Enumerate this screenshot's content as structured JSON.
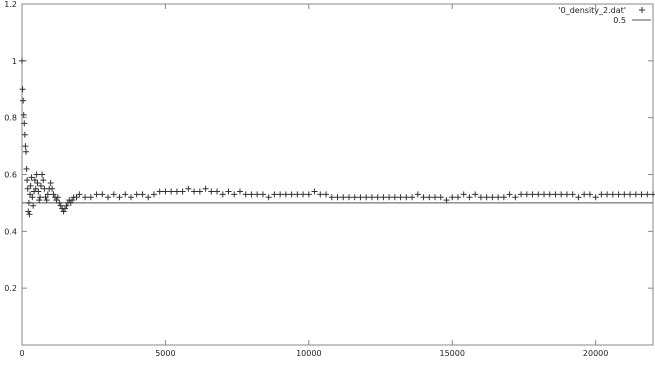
{
  "chart_data": {
    "type": "scatter",
    "xlim": [
      0,
      22000
    ],
    "ylim": [
      0,
      1.2
    ],
    "xticks": [
      0,
      5000,
      10000,
      15000,
      20000
    ],
    "yticks": [
      0.2,
      0.4,
      0.6,
      0.8,
      1,
      1.2
    ],
    "xtick_labels": [
      "0",
      "5000",
      "10000",
      "15000",
      "20000"
    ],
    "ytick_labels": [
      "0.2",
      "0.4",
      "0.6",
      "0.8",
      "1",
      "1.2"
    ],
    "grid": false,
    "legend_position": "top-right",
    "series": [
      {
        "name": "'0_density_2.dat'",
        "marker": "plus",
        "color": "#333333",
        "points": [
          [
            0,
            1.0
          ],
          [
            20,
            0.9
          ],
          [
            40,
            0.86
          ],
          [
            60,
            0.81
          ],
          [
            80,
            0.78
          ],
          [
            100,
            0.74
          ],
          [
            120,
            0.7
          ],
          [
            140,
            0.68
          ],
          [
            160,
            0.62
          ],
          [
            180,
            0.58
          ],
          [
            200,
            0.55
          ],
          [
            220,
            0.47
          ],
          [
            240,
            0.5
          ],
          [
            260,
            0.46
          ],
          [
            280,
            0.53
          ],
          [
            300,
            0.56
          ],
          [
            330,
            0.59
          ],
          [
            360,
            0.52
          ],
          [
            390,
            0.49
          ],
          [
            420,
            0.54
          ],
          [
            450,
            0.58
          ],
          [
            480,
            0.55
          ],
          [
            510,
            0.6
          ],
          [
            540,
            0.57
          ],
          [
            570,
            0.54
          ],
          [
            600,
            0.51
          ],
          [
            630,
            0.52
          ],
          [
            660,
            0.56
          ],
          [
            700,
            0.6
          ],
          [
            740,
            0.58
          ],
          [
            780,
            0.55
          ],
          [
            820,
            0.52
          ],
          [
            860,
            0.51
          ],
          [
            900,
            0.53
          ],
          [
            950,
            0.55
          ],
          [
            1000,
            0.57
          ],
          [
            1050,
            0.55
          ],
          [
            1100,
            0.53
          ],
          [
            1150,
            0.52
          ],
          [
            1200,
            0.51
          ],
          [
            1250,
            0.52
          ],
          [
            1300,
            0.5
          ],
          [
            1350,
            0.49
          ],
          [
            1400,
            0.48
          ],
          [
            1450,
            0.47
          ],
          [
            1500,
            0.48
          ],
          [
            1550,
            0.49
          ],
          [
            1600,
            0.5
          ],
          [
            1650,
            0.51
          ],
          [
            1700,
            0.5
          ],
          [
            1750,
            0.51
          ],
          [
            1800,
            0.52
          ],
          [
            1900,
            0.52
          ],
          [
            2000,
            0.53
          ],
          [
            2200,
            0.52
          ],
          [
            2400,
            0.52
          ],
          [
            2600,
            0.53
          ],
          [
            2800,
            0.53
          ],
          [
            3000,
            0.52
          ],
          [
            3200,
            0.53
          ],
          [
            3400,
            0.52
          ],
          [
            3600,
            0.53
          ],
          [
            3800,
            0.52
          ],
          [
            4000,
            0.53
          ],
          [
            4200,
            0.53
          ],
          [
            4400,
            0.52
          ],
          [
            4600,
            0.53
          ],
          [
            4800,
            0.54
          ],
          [
            5000,
            0.54
          ],
          [
            5200,
            0.54
          ],
          [
            5400,
            0.54
          ],
          [
            5600,
            0.54
          ],
          [
            5800,
            0.55
          ],
          [
            6000,
            0.54
          ],
          [
            6200,
            0.54
          ],
          [
            6400,
            0.55
          ],
          [
            6600,
            0.54
          ],
          [
            6800,
            0.54
          ],
          [
            7000,
            0.53
          ],
          [
            7200,
            0.54
          ],
          [
            7400,
            0.53
          ],
          [
            7600,
            0.54
          ],
          [
            7800,
            0.53
          ],
          [
            8000,
            0.53
          ],
          [
            8200,
            0.53
          ],
          [
            8400,
            0.53
          ],
          [
            8600,
            0.52
          ],
          [
            8800,
            0.53
          ],
          [
            9000,
            0.53
          ],
          [
            9200,
            0.53
          ],
          [
            9400,
            0.53
          ],
          [
            9600,
            0.53
          ],
          [
            9800,
            0.53
          ],
          [
            10000,
            0.53
          ],
          [
            10200,
            0.54
          ],
          [
            10400,
            0.53
          ],
          [
            10600,
            0.53
          ],
          [
            10800,
            0.52
          ],
          [
            11000,
            0.52
          ],
          [
            11200,
            0.52
          ],
          [
            11400,
            0.52
          ],
          [
            11600,
            0.52
          ],
          [
            11800,
            0.52
          ],
          [
            12000,
            0.52
          ],
          [
            12200,
            0.52
          ],
          [
            12400,
            0.52
          ],
          [
            12600,
            0.52
          ],
          [
            12800,
            0.52
          ],
          [
            13000,
            0.52
          ],
          [
            13200,
            0.52
          ],
          [
            13400,
            0.52
          ],
          [
            13600,
            0.52
          ],
          [
            13800,
            0.53
          ],
          [
            14000,
            0.52
          ],
          [
            14200,
            0.52
          ],
          [
            14400,
            0.52
          ],
          [
            14600,
            0.52
          ],
          [
            14800,
            0.51
          ],
          [
            15000,
            0.52
          ],
          [
            15200,
            0.52
          ],
          [
            15400,
            0.53
          ],
          [
            15600,
            0.52
          ],
          [
            15800,
            0.53
          ],
          [
            16000,
            0.52
          ],
          [
            16200,
            0.52
          ],
          [
            16400,
            0.52
          ],
          [
            16600,
            0.52
          ],
          [
            16800,
            0.52
          ],
          [
            17000,
            0.53
          ],
          [
            17200,
            0.52
          ],
          [
            17400,
            0.53
          ],
          [
            17600,
            0.53
          ],
          [
            17800,
            0.53
          ],
          [
            18000,
            0.53
          ],
          [
            18200,
            0.53
          ],
          [
            18400,
            0.53
          ],
          [
            18600,
            0.53
          ],
          [
            18800,
            0.53
          ],
          [
            19000,
            0.53
          ],
          [
            19200,
            0.53
          ],
          [
            19400,
            0.52
          ],
          [
            19600,
            0.53
          ],
          [
            19800,
            0.53
          ],
          [
            20000,
            0.52
          ],
          [
            20200,
            0.53
          ],
          [
            20400,
            0.53
          ],
          [
            20600,
            0.53
          ],
          [
            20800,
            0.53
          ],
          [
            21000,
            0.53
          ],
          [
            21200,
            0.53
          ],
          [
            21400,
            0.53
          ],
          [
            21600,
            0.53
          ],
          [
            21800,
            0.53
          ],
          [
            22000,
            0.53
          ]
        ]
      },
      {
        "name": "0.5",
        "marker": "line",
        "color": "#555555",
        "y": 0.5
      }
    ]
  }
}
